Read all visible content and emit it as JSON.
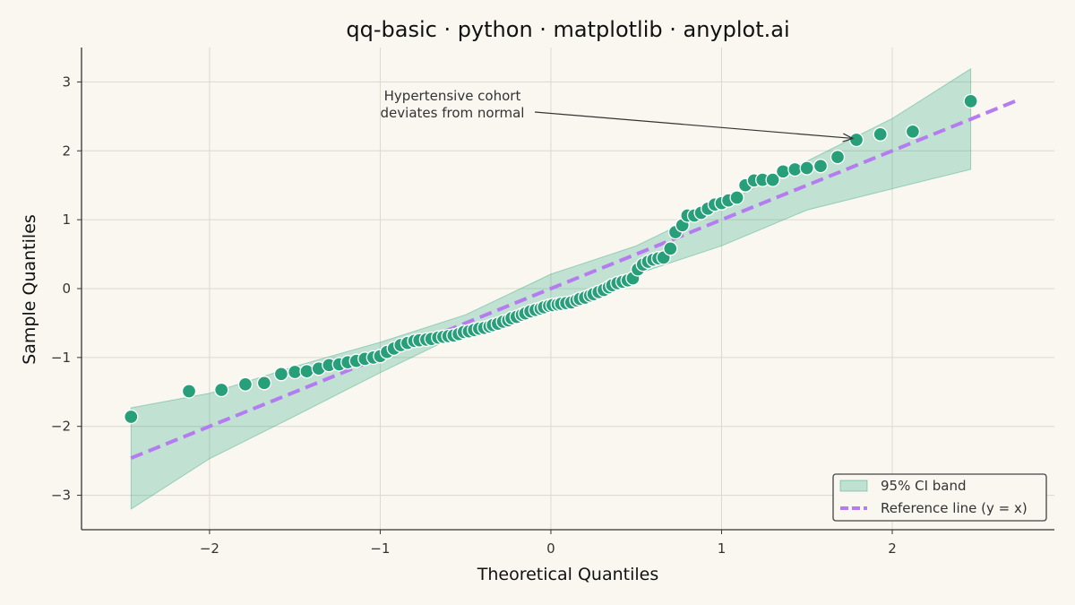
{
  "chart_data": {
    "type": "scatter",
    "title": "qq-basic · python · matplotlib · anyplot.ai",
    "xlabel": "Theoretical Quantiles",
    "ylabel": "Sample Quantiles",
    "xlim": [
      -2.75,
      2.95
    ],
    "ylim": [
      -3.5,
      3.5
    ],
    "xticks": [
      -2,
      -1,
      0,
      1,
      2
    ],
    "yticks": [
      -3,
      -2,
      -1,
      0,
      1,
      2,
      3
    ],
    "xtick_labels": [
      "−2",
      "−1",
      "0",
      "1",
      "2"
    ],
    "ytick_labels": [
      "−3",
      "−2",
      "−1",
      "0",
      "1",
      "2",
      "3"
    ],
    "grid": true,
    "legend_position": "lower-right",
    "legend": [
      {
        "label": "95% CI band",
        "kind": "patch"
      },
      {
        "label": "Reference line (y = x)",
        "kind": "line"
      }
    ],
    "reference_line": {
      "x": [
        -2.46,
        2.72
      ],
      "y": [
        -2.46,
        2.72
      ],
      "color": "#B57BF0",
      "style": "dashed"
    },
    "ci_band": {
      "x": [
        -2.46,
        -2.0,
        -1.5,
        -1.0,
        -0.5,
        0.0,
        0.5,
        1.0,
        1.5,
        2.0,
        2.46
      ],
      "lower": [
        -3.2,
        -2.47,
        -1.85,
        -1.22,
        -0.62,
        -0.21,
        0.21,
        0.62,
        1.14,
        1.45,
        1.73
      ],
      "upper": [
        -1.73,
        -1.52,
        -1.13,
        -0.78,
        -0.38,
        0.21,
        0.62,
        1.22,
        1.85,
        2.47,
        3.19
      ],
      "color": "#2AA57D"
    },
    "series": [
      {
        "color": "#27A07A",
        "x": [
          -2.46,
          -2.12,
          -1.93,
          -1.79,
          -1.68,
          -1.58,
          -1.5,
          -1.43,
          -1.36,
          -1.3,
          -1.24,
          -1.19,
          -1.14,
          -1.09,
          -1.04,
          -1.0,
          -0.96,
          -0.92,
          -0.88,
          -0.84,
          -0.8,
          -0.77,
          -0.73,
          -0.7,
          -0.66,
          -0.63,
          -0.6,
          -0.57,
          -0.54,
          -0.51,
          -0.48,
          -0.45,
          -0.42,
          -0.39,
          -0.36,
          -0.34,
          -0.31,
          -0.28,
          -0.25,
          -0.23,
          -0.2,
          -0.17,
          -0.15,
          -0.12,
          -0.09,
          -0.06,
          -0.04,
          -0.01,
          0.01,
          0.04,
          0.06,
          0.09,
          0.12,
          0.15,
          0.17,
          0.2,
          0.23,
          0.25,
          0.28,
          0.31,
          0.34,
          0.36,
          0.39,
          0.42,
          0.45,
          0.48,
          0.51,
          0.54,
          0.57,
          0.6,
          0.63,
          0.66,
          0.7,
          0.73,
          0.77,
          0.8,
          0.84,
          0.88,
          0.92,
          0.96,
          1.0,
          1.04,
          1.09,
          1.14,
          1.19,
          1.24,
          1.3,
          1.36,
          1.43,
          1.5,
          1.58,
          1.68,
          1.79,
          1.93,
          2.12,
          2.46
        ],
        "y": [
          -1.86,
          -1.49,
          -1.47,
          -1.39,
          -1.37,
          -1.24,
          -1.21,
          -1.2,
          -1.16,
          -1.11,
          -1.1,
          -1.07,
          -1.05,
          -1.02,
          -1.0,
          -0.98,
          -0.92,
          -0.87,
          -0.82,
          -0.79,
          -0.76,
          -0.75,
          -0.74,
          -0.73,
          -0.71,
          -0.7,
          -0.69,
          -0.68,
          -0.66,
          -0.63,
          -0.62,
          -0.6,
          -0.58,
          -0.57,
          -0.55,
          -0.53,
          -0.51,
          -0.48,
          -0.46,
          -0.43,
          -0.41,
          -0.38,
          -0.36,
          -0.33,
          -0.31,
          -0.29,
          -0.27,
          -0.25,
          -0.24,
          -0.23,
          -0.22,
          -0.21,
          -0.2,
          -0.17,
          -0.15,
          -0.13,
          -0.1,
          -0.08,
          -0.05,
          -0.02,
          0.02,
          0.05,
          0.08,
          0.1,
          0.12,
          0.15,
          0.28,
          0.35,
          0.39,
          0.42,
          0.44,
          0.45,
          0.58,
          0.82,
          0.92,
          1.06,
          1.06,
          1.1,
          1.16,
          1.22,
          1.24,
          1.28,
          1.32,
          1.5,
          1.57,
          1.58,
          1.58,
          1.7,
          1.73,
          1.75,
          1.78,
          1.91,
          2.16,
          2.24,
          2.28,
          2.72
        ]
      }
    ],
    "annotation": {
      "lines": [
        "Hypertensive cohort",
        "deviates from normal"
      ],
      "target": [
        1.8,
        2.18
      ]
    }
  }
}
